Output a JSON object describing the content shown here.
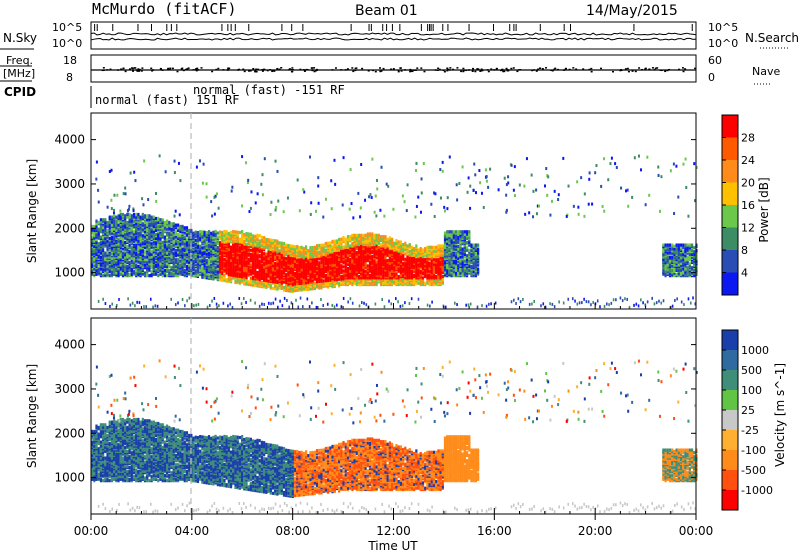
{
  "header": {
    "station": "McMurdo (fitACF)",
    "beam": "Beam 01",
    "date": "14/May/2015"
  },
  "top_strip": {
    "nsky_label": "N.Sky",
    "nsearch_label": "N.Search",
    "nsky_ticks": [
      "10^5",
      "10^0"
    ],
    "nsearch_ticks": [
      "10^5",
      "10^0"
    ],
    "freq_label_top": "Freq.",
    "freq_label_bottom": "[MHz]",
    "freq_ticks": [
      "18",
      "8"
    ],
    "nave_label": "Nave",
    "nave_ticks": [
      "60",
      "0"
    ],
    "cpid_label": "CPID",
    "cpid_text_1": "normal (fast) 151 RF",
    "cpid_text_2": "normal (fast) -151 RF"
  },
  "chart_data": [
    {
      "type": "heatmap",
      "name": "power",
      "ylabel": "Slant Range [km]",
      "yticks": [
        1000,
        2000,
        3000,
        4000
      ],
      "ylim": [
        180,
        4600
      ],
      "colorbar_label": "Power [dB]",
      "colorbar_ticks": [
        "28",
        "24",
        "20",
        "16",
        "12",
        "8",
        "4"
      ],
      "colorbar_colors": [
        "#ff0000",
        "#ff5a00",
        "#ff8c1a",
        "#ffc000",
        "#6cc84b",
        "#3c8c64",
        "#2a4cb5",
        "#0b18f2"
      ],
      "echo_band_range_km": [
        600,
        2000
      ],
      "strong_echo_hours": [
        5,
        14
      ]
    },
    {
      "type": "heatmap",
      "name": "velocity",
      "ylabel": "Slant Range [km]",
      "xlabel": "Time UT",
      "yticks": [
        1000,
        2000,
        3000,
        4000
      ],
      "ylim": [
        180,
        4600
      ],
      "xticks": [
        "00:00",
        "04:00",
        "08:00",
        "12:00",
        "16:00",
        "20:00",
        "00:00"
      ],
      "colorbar_label": "Velocity [m s^-1]",
      "colorbar_ticks": [
        "1000",
        "500",
        "100",
        "25",
        "-25",
        "-100",
        "-500",
        "-1000"
      ],
      "colorbar_colors": [
        "#1b3faa",
        "#2f6aa0",
        "#3f8e7a",
        "#62c445",
        "#c8c8c8",
        "#ffb030",
        "#ff8c1a",
        "#ff5010",
        "#ff0000"
      ]
    }
  ]
}
